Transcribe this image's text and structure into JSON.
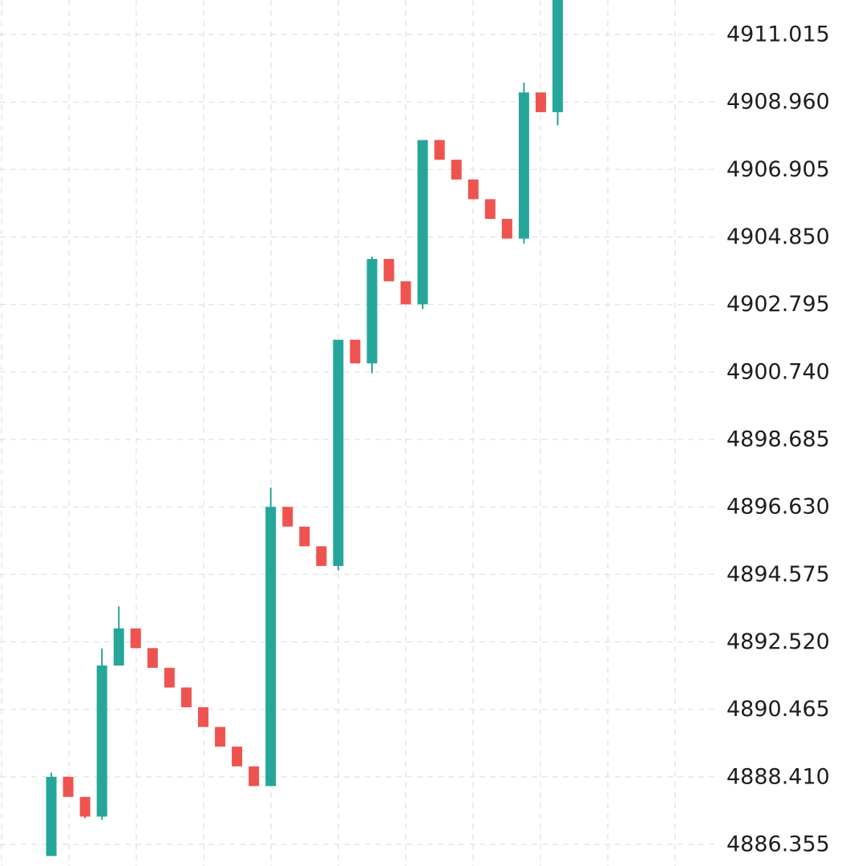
{
  "chart_data": {
    "type": "candlestick",
    "title": "",
    "xlabel": "",
    "ylabel": "",
    "y_axis_position": "right",
    "grid": true,
    "ylim": [
      4886.0,
      4912.4
    ],
    "y_ticks": [
      "4911.015",
      "4908.960",
      "4906.905",
      "4904.850",
      "4902.795",
      "4900.740",
      "4898.685",
      "4896.630",
      "4894.575",
      "4892.520",
      "4890.465",
      "4888.410",
      "4886.355"
    ],
    "colors": {
      "up": "#26a69a",
      "down": "#ef5350",
      "grid": "#e0e0e0",
      "text": "#1e1e1e"
    },
    "candles": [
      {
        "open": 4886.0,
        "high": 4888.54,
        "low": 4886.0,
        "close": 4888.41
      },
      {
        "open": 4888.41,
        "high": 4888.41,
        "low": 4887.8,
        "close": 4887.8
      },
      {
        "open": 4887.8,
        "high": 4887.8,
        "low": 4887.15,
        "close": 4887.2
      },
      {
        "open": 4887.2,
        "high": 4892.32,
        "low": 4887.1,
        "close": 4891.8
      },
      {
        "open": 4891.8,
        "high": 4893.6,
        "low": 4891.8,
        "close": 4892.93
      },
      {
        "open": 4892.93,
        "high": 4892.93,
        "low": 4892.33,
        "close": 4892.33
      },
      {
        "open": 4892.33,
        "high": 4892.33,
        "low": 4891.73,
        "close": 4891.73
      },
      {
        "open": 4891.73,
        "high": 4891.73,
        "low": 4891.13,
        "close": 4891.13
      },
      {
        "open": 4891.13,
        "high": 4891.13,
        "low": 4890.53,
        "close": 4890.53
      },
      {
        "open": 4890.53,
        "high": 4890.53,
        "low": 4889.93,
        "close": 4889.93
      },
      {
        "open": 4889.93,
        "high": 4889.93,
        "low": 4889.33,
        "close": 4889.33
      },
      {
        "open": 4889.33,
        "high": 4889.33,
        "low": 4888.73,
        "close": 4888.73
      },
      {
        "open": 4888.73,
        "high": 4888.73,
        "low": 4888.13,
        "close": 4888.13
      },
      {
        "open": 4888.13,
        "high": 4897.22,
        "low": 4888.13,
        "close": 4896.63
      },
      {
        "open": 4896.63,
        "high": 4896.63,
        "low": 4896.03,
        "close": 4896.03
      },
      {
        "open": 4896.03,
        "high": 4896.03,
        "low": 4895.43,
        "close": 4895.43
      },
      {
        "open": 4895.43,
        "high": 4895.43,
        "low": 4894.83,
        "close": 4894.83
      },
      {
        "open": 4894.83,
        "high": 4901.7,
        "low": 4894.7,
        "close": 4901.72
      },
      {
        "open": 4901.72,
        "high": 4901.72,
        "low": 4901.0,
        "close": 4901.0
      },
      {
        "open": 4901.0,
        "high": 4904.25,
        "low": 4900.7,
        "close": 4904.18
      },
      {
        "open": 4904.18,
        "high": 4904.18,
        "low": 4903.5,
        "close": 4903.5
      },
      {
        "open": 4903.5,
        "high": 4903.5,
        "low": 4902.8,
        "close": 4902.8
      },
      {
        "open": 4902.8,
        "high": 4907.55,
        "low": 4902.65,
        "close": 4907.8
      },
      {
        "open": 4907.8,
        "high": 4907.8,
        "low": 4907.2,
        "close": 4907.2
      },
      {
        "open": 4907.2,
        "high": 4907.2,
        "low": 4906.6,
        "close": 4906.6
      },
      {
        "open": 4906.6,
        "high": 4906.6,
        "low": 4906.0,
        "close": 4906.0
      },
      {
        "open": 4906.0,
        "high": 4906.0,
        "low": 4905.4,
        "close": 4905.4
      },
      {
        "open": 4905.4,
        "high": 4905.4,
        "low": 4904.8,
        "close": 4904.8
      },
      {
        "open": 4904.8,
        "high": 4909.55,
        "low": 4904.65,
        "close": 4909.25
      },
      {
        "open": 4909.25,
        "high": 4909.25,
        "low": 4908.65,
        "close": 4908.65
      },
      {
        "open": 4908.65,
        "high": 4912.4,
        "low": 4908.25,
        "close": 4912.4
      }
    ]
  }
}
